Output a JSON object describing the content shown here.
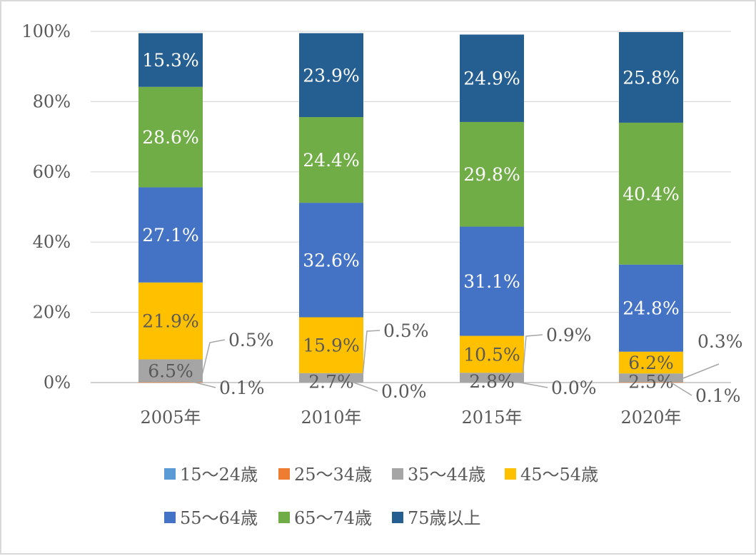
{
  "chart_data": {
    "type": "bar",
    "stacked": true,
    "percent_stacked": true,
    "categories": [
      "2005年",
      "2010年",
      "2015年",
      "2020年"
    ],
    "series": [
      {
        "name": "15～24歳",
        "color": "#5b9bd5",
        "values": [
          0.0,
          0.0,
          0.0,
          0.0
        ],
        "labels": [
          "",
          "",
          "",
          ""
        ]
      },
      {
        "name": "25～34歳",
        "color": "#ed7d31",
        "values": [
          0.1,
          0.0,
          0.0,
          0.1
        ],
        "labels": [
          "0.1%",
          "0.0%",
          "0.0%",
          "0.1%"
        ]
      },
      {
        "name": "35～44歳",
        "color": "#a5a5a5",
        "values": [
          6.5,
          2.7,
          2.8,
          2.5
        ],
        "labels": [
          "6.5%",
          "2.7%",
          "2.8%",
          "2.5%"
        ]
      },
      {
        "name": "45～54歳",
        "color": "#ffc000",
        "values": [
          21.9,
          15.9,
          10.5,
          6.2
        ],
        "labels": [
          "21.9%",
          "15.9%",
          "10.5%",
          "6.2%"
        ]
      },
      {
        "name": "55～64歳",
        "color": "#4472c4",
        "values": [
          27.1,
          32.6,
          31.1,
          24.8
        ],
        "labels": [
          "27.1%",
          "32.6%",
          "31.1%",
          "24.8%"
        ]
      },
      {
        "name": "65～74歳",
        "color": "#70ad47",
        "values": [
          28.6,
          24.4,
          29.8,
          40.4
        ],
        "labels": [
          "28.6%",
          "24.4%",
          "29.8%",
          "40.4%"
        ]
      },
      {
        "name": "75歳以上",
        "color": "#255e91",
        "values": [
          15.3,
          23.9,
          24.9,
          25.8
        ],
        "labels": [
          "15.3%",
          "23.9%",
          "24.9%",
          "25.8%"
        ]
      }
    ],
    "extra_labels": [
      "0.5%",
      "0.5%",
      "0.9%",
      "0.3%"
    ],
    "y_ticks": [
      "0%",
      "20%",
      "40%",
      "60%",
      "80%",
      "100%"
    ],
    "ylim": [
      0,
      100
    ],
    "grid": true,
    "legend_position": "bottom"
  }
}
